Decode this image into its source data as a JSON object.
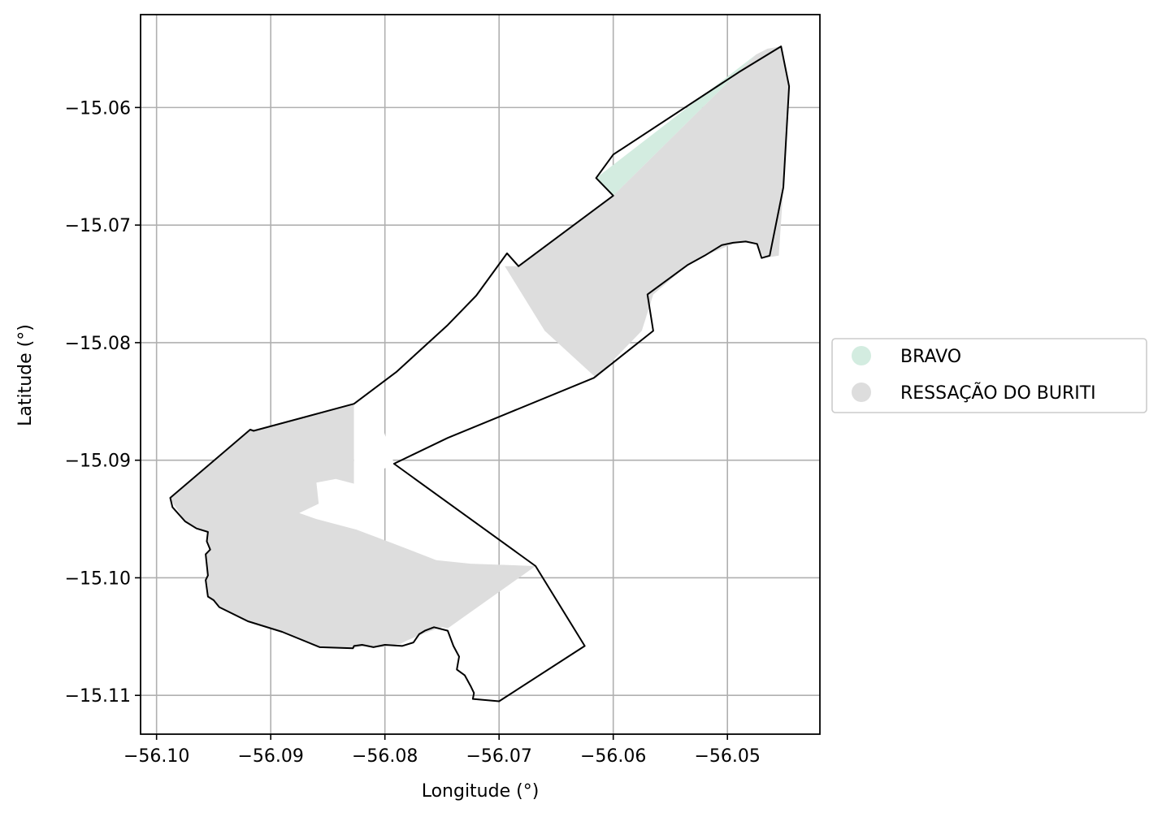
{
  "chart_data": {
    "type": "map",
    "xlabel": "Longitude (°)",
    "ylabel": "Latitude (°)",
    "xlim": [
      -56.1014,
      -56.0419
    ],
    "ylim": [
      -15.1133,
      -15.0521
    ],
    "x_ticks": [
      -56.1,
      -56.09,
      -56.08,
      -56.07,
      -56.06,
      -56.05
    ],
    "x_tick_labels": [
      "−56.10",
      "−56.09",
      "−56.08",
      "−56.07",
      "−56.06",
      "−56.05"
    ],
    "y_ticks": [
      -15.06,
      -15.07,
      -15.08,
      -15.09,
      -15.1,
      -15.11
    ],
    "y_tick_labels": [
      "−15.06",
      "−15.07",
      "−15.08",
      "−15.09",
      "−15.10",
      "−15.11"
    ],
    "grid": true,
    "legend_position": "right",
    "legend": [
      {
        "label": "BRAVO",
        "color": "#d3ece0"
      },
      {
        "label": "RESSAÇÃO DO BURITI",
        "color": "#dddddd"
      }
    ],
    "regions": [
      {
        "name": "BRAVO",
        "color": "#d3ece0",
        "coords": [
          [
            -56.0615,
            -15.066
          ],
          [
            -56.0475,
            -15.0555
          ],
          [
            -56.06,
            -15.0675
          ]
        ]
      },
      {
        "name": "RESSAÇÃO DO BURITI",
        "color": "#dddddd",
        "coords": [
          [
            -56.06,
            -15.0675
          ],
          [
            -56.0475,
            -15.0555
          ],
          [
            -56.0465,
            -15.055
          ],
          [
            -56.0453,
            -15.0548
          ],
          [
            -56.0446,
            -15.0582
          ],
          [
            -56.0451,
            -15.0668
          ],
          [
            -56.0455,
            -15.0726
          ],
          [
            -56.0468,
            -15.0728
          ],
          [
            -56.0474,
            -15.0717
          ],
          [
            -56.0485,
            -15.0714
          ],
          [
            -56.0495,
            -15.0716
          ],
          [
            -56.052,
            -15.0726
          ],
          [
            -56.0535,
            -15.0734
          ],
          [
            -56.0565,
            -15.0759
          ],
          [
            -56.0575,
            -15.079
          ],
          [
            -56.0615,
            -15.083
          ],
          [
            -56.066,
            -15.079
          ],
          [
            -56.0695,
            -15.0735
          ],
          [
            -56.0683,
            -15.0735
          ],
          [
            -56.06,
            -15.0675
          ]
        ]
      },
      {
        "name": "RESSAÇÃO DO BURITI",
        "color": "#dddddd",
        "coords": [
          [
            -56.0827,
            -15.0852
          ],
          [
            -56.0915,
            -15.0875
          ],
          [
            -56.0918,
            -15.0874
          ],
          [
            -56.0988,
            -15.0932
          ],
          [
            -56.0986,
            -15.0936
          ],
          [
            -56.0975,
            -15.0952
          ],
          [
            -56.0965,
            -15.0958
          ],
          [
            -56.0955,
            -15.0961
          ],
          [
            -56.0956,
            -15.0969
          ],
          [
            -56.0953,
            -15.0976
          ],
          [
            -56.0957,
            -15.098
          ],
          [
            -56.0955,
            -15.0998
          ],
          [
            -56.0957,
            -15.1002
          ],
          [
            -56.0955,
            -15.1016
          ],
          [
            -56.095,
            -15.1019
          ],
          [
            -56.0945,
            -15.1025
          ],
          [
            -56.092,
            -15.1037
          ],
          [
            -56.089,
            -15.1046
          ],
          [
            -56.0857,
            -15.1059
          ],
          [
            -56.0828,
            -15.106
          ],
          [
            -56.0817,
            -15.1058
          ],
          [
            -56.081,
            -15.1059
          ],
          [
            -56.0803,
            -15.1059
          ],
          [
            -56.0786,
            -15.1056
          ],
          [
            -56.078,
            -15.1053
          ],
          [
            -56.0765,
            -15.1047
          ],
          [
            -56.075,
            -15.1042
          ],
          [
            -56.0745,
            -15.1043
          ],
          [
            -56.0668,
            -15.099
          ],
          [
            -56.0725,
            -15.0988
          ],
          [
            -56.0755,
            -15.0985
          ],
          [
            -56.0795,
            -15.097
          ],
          [
            -56.0825,
            -15.0959
          ],
          [
            -56.086,
            -15.095
          ],
          [
            -56.0875,
            -15.0945
          ],
          [
            -56.0858,
            -15.0937
          ],
          [
            -56.086,
            -15.0919
          ],
          [
            -56.0843,
            -15.0916
          ],
          [
            -56.0827,
            -15.092
          ],
          [
            -56.0827,
            -15.0852
          ]
        ]
      }
    ],
    "outline": [
      [
        -56.0453,
        -15.0548
      ],
      [
        -56.049,
        -15.057
      ],
      [
        -56.06,
        -15.064
      ],
      [
        -56.0615,
        -15.066
      ],
      [
        -56.06,
        -15.0675
      ],
      [
        -56.0683,
        -15.0735
      ],
      [
        -56.0693,
        -15.0724
      ],
      [
        -56.072,
        -15.076
      ],
      [
        -56.0745,
        -15.0785
      ],
      [
        -56.079,
        -15.0825
      ],
      [
        -56.0827,
        -15.0852
      ],
      [
        -56.0915,
        -15.0875
      ],
      [
        -56.0918,
        -15.0874
      ],
      [
        -56.0988,
        -15.0932
      ],
      [
        -56.0986,
        -15.094
      ],
      [
        -56.0975,
        -15.0952
      ],
      [
        -56.0965,
        -15.0958
      ],
      [
        -56.0955,
        -15.0961
      ],
      [
        -56.0956,
        -15.0969
      ],
      [
        -56.0953,
        -15.0976
      ],
      [
        -56.0957,
        -15.098
      ],
      [
        -56.0955,
        -15.0998
      ],
      [
        -56.0957,
        -15.1002
      ],
      [
        -56.0955,
        -15.1016
      ],
      [
        -56.095,
        -15.1019
      ],
      [
        -56.0945,
        -15.1025
      ],
      [
        -56.092,
        -15.1037
      ],
      [
        -56.089,
        -15.1046
      ],
      [
        -56.0857,
        -15.1059
      ],
      [
        -56.0828,
        -15.106
      ],
      [
        -56.0827,
        -15.1058
      ],
      [
        -56.082,
        -15.1057
      ],
      [
        -56.081,
        -15.1059
      ],
      [
        -56.08,
        -15.1057
      ],
      [
        -56.0785,
        -15.1058
      ],
      [
        -56.0775,
        -15.1055
      ],
      [
        -56.077,
        -15.1048
      ],
      [
        -56.0765,
        -15.1045
      ],
      [
        -56.0757,
        -15.1042
      ],
      [
        -56.0745,
        -15.1045
      ],
      [
        -56.074,
        -15.1058
      ],
      [
        -56.0735,
        -15.1067
      ],
      [
        -56.0737,
        -15.1078
      ],
      [
        -56.073,
        -15.1083
      ],
      [
        -56.0725,
        -15.1092
      ],
      [
        -56.0722,
        -15.1098
      ],
      [
        -56.0723,
        -15.1103
      ],
      [
        -56.0712,
        -15.1104
      ],
      [
        -56.07,
        -15.1105
      ],
      [
        -56.0625,
        -15.1058
      ],
      [
        -56.0668,
        -15.099
      ],
      [
        -56.0792,
        -15.0903
      ],
      [
        -56.0745,
        -15.0881
      ],
      [
        -56.0617,
        -15.083
      ],
      [
        -56.0565,
        -15.079
      ],
      [
        -56.057,
        -15.0759
      ],
      [
        -56.0535,
        -15.0734
      ],
      [
        -56.052,
        -15.0726
      ],
      [
        -56.0505,
        -15.0717
      ],
      [
        -56.0495,
        -15.0715
      ],
      [
        -56.0484,
        -15.0714
      ],
      [
        -56.0474,
        -15.0716
      ],
      [
        -56.047,
        -15.0728
      ],
      [
        -56.0463,
        -15.0726
      ],
      [
        -56.0451,
        -15.0668
      ],
      [
        -56.0446,
        -15.0582
      ],
      [
        -56.0453,
        -15.0548
      ]
    ],
    "white_gap": [
      [
        -56.0827,
        -15.0852
      ],
      [
        -56.0813,
        -15.0838
      ],
      [
        -56.0792,
        -15.0903
      ],
      [
        -56.0827,
        -15.092
      ]
    ]
  }
}
